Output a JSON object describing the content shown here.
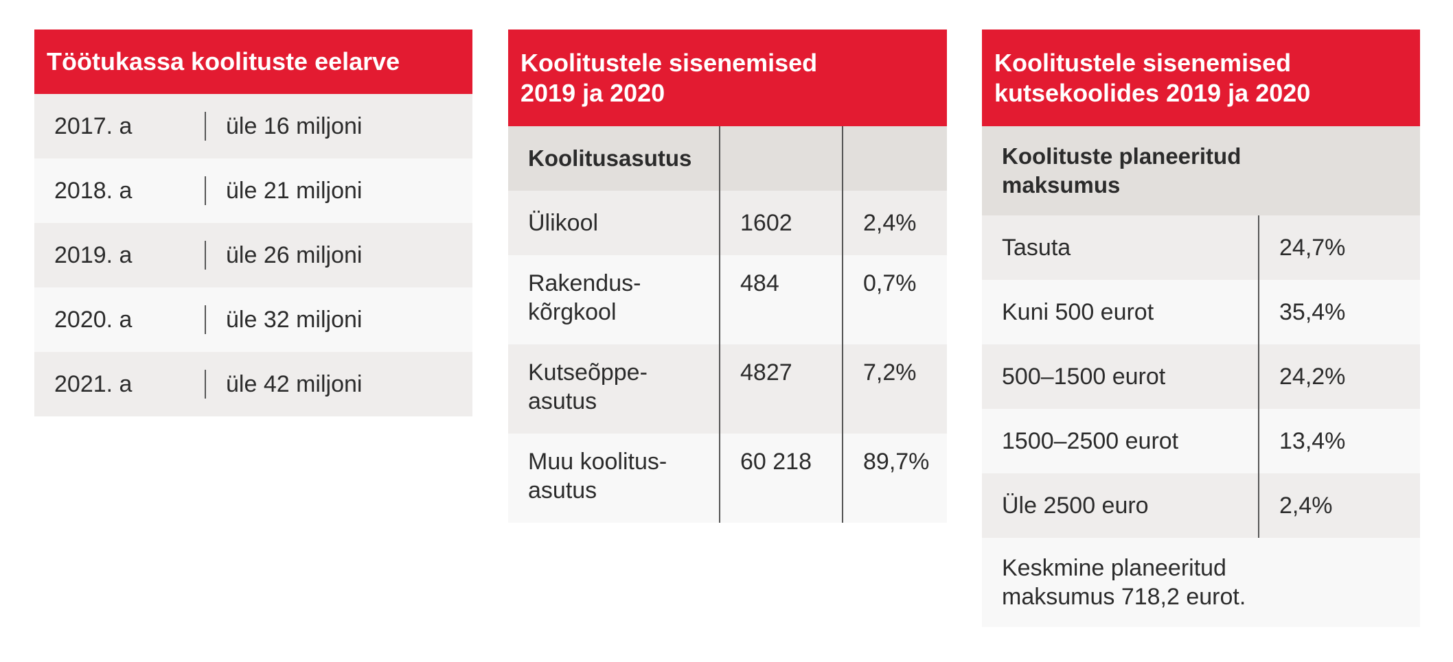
{
  "budget": {
    "title": "Töötukassa koolituste eelarve",
    "rows": [
      {
        "year": "2017. a",
        "amount": "üle 16 miljoni"
      },
      {
        "year": "2018. a",
        "amount": "üle 21 miljoni"
      },
      {
        "year": "2019. a",
        "amount": "üle 26 miljoni"
      },
      {
        "year": "2020. a",
        "amount": "üle 32 miljoni"
      },
      {
        "year": "2021. a",
        "amount": "üle 42 miljoni"
      }
    ]
  },
  "entries": {
    "title_line1": "Koolitustele sisenemised",
    "title_line2": "2019 ja 2020",
    "col_header": "Koolitusasutus",
    "rows": [
      {
        "name_line1": "Ülikool",
        "name_line2": "",
        "count": "1602",
        "share": "2,4%"
      },
      {
        "name_line1": "Rakendus-",
        "name_line2": "kõrgkool",
        "count": "484",
        "share": "0,7%"
      },
      {
        "name_line1": "Kutseõppe-",
        "name_line2": "asutus",
        "count": "4827",
        "share": "7,2%"
      },
      {
        "name_line1": "Muu koolitus-",
        "name_line2": "asutus",
        "count": "60 218",
        "share": "89,7%"
      }
    ]
  },
  "vocational": {
    "title_line1": "Koolitustele sisenemised",
    "title_line2": "kutsekoolides 2019 ja 2020",
    "col_header_line1": "Koolituste planeeritud",
    "col_header_line2": "maksumus",
    "rows": [
      {
        "label": "Tasuta",
        "share": "24,7%"
      },
      {
        "label": "Kuni 500 eurot",
        "share": "35,4%"
      },
      {
        "label": "500–1500 eurot",
        "share": "24,2%"
      },
      {
        "label": "1500–2500 eurot",
        "share": "13,4%"
      },
      {
        "label": "Üle 2500 euro",
        "share": "2,4%"
      }
    ],
    "note_line1": "Keskmine planeeritud",
    "note_line2": "maksumus 718,2 eurot."
  },
  "colors": {
    "header_red": "#e31b31",
    "row_dark": "#efedec",
    "row_light": "#f8f8f8",
    "subhead_gray": "#e2dfdc"
  }
}
